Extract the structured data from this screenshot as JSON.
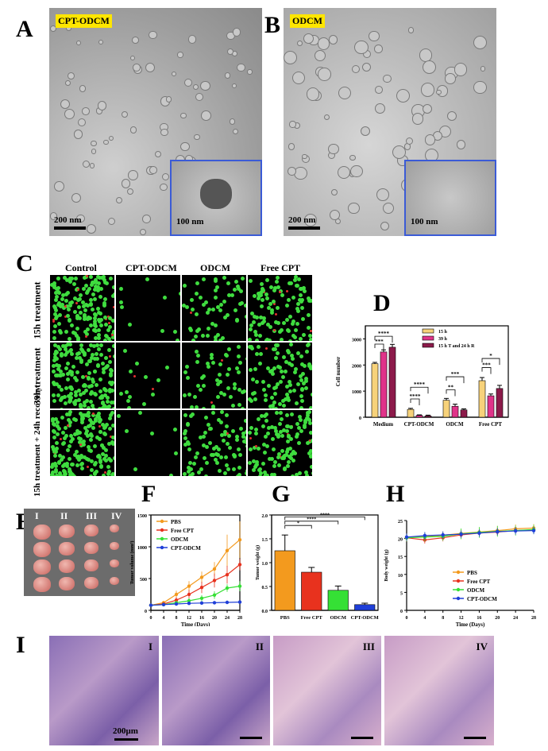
{
  "panels": {
    "A": {
      "letter": "A",
      "tag": "CPT-ODCM",
      "scale": "200 nm",
      "inset_scale": "100 nm"
    },
    "B": {
      "letter": "B",
      "tag": "ODCM",
      "scale": "200 nm",
      "inset_scale": "100 nm"
    },
    "C": {
      "letter": "C",
      "columns": [
        "Control",
        "CPT-ODCM",
        "ODCM",
        "Free CPT"
      ],
      "rows": [
        "15h treatment",
        "39h treatment",
        "15h treatment + 24h recovery"
      ]
    },
    "D": {
      "letter": "D"
    },
    "E": {
      "letter": "E",
      "groups": [
        "I",
        "II",
        "III",
        "IV"
      ]
    },
    "F": {
      "letter": "F"
    },
    "G": {
      "letter": "G"
    },
    "H": {
      "letter": "H"
    },
    "I": {
      "letter": "I",
      "images": [
        "I",
        "II",
        "III",
        "IV"
      ],
      "scale": "200μm"
    }
  },
  "colors": {
    "PBS": "#f39a1e",
    "Free CPT": "#e8321e",
    "ODCM": "#35e035",
    "CPT-ODCM": "#1f3fd8",
    "15 h": "#f7d27a",
    "39 h": "#e0338a",
    "15 h T and 24 h R": "#8c1a4a"
  },
  "chart_data": [
    {
      "id": "D",
      "type": "bar",
      "ylabel": "Cell number",
      "ylim": [
        0,
        3500
      ],
      "yticks": [
        0,
        1000,
        2000,
        3000
      ],
      "categories": [
        "Medium",
        "CPT-ODCM",
        "ODCM",
        "Free CPT"
      ],
      "legend": "top-right",
      "series": [
        {
          "name": "15 h",
          "values": [
            2050,
            300,
            650,
            1400
          ],
          "errors": [
            50,
            40,
            70,
            120
          ]
        },
        {
          "name": "39 h",
          "values": [
            2500,
            70,
            420,
            820
          ],
          "errors": [
            80,
            20,
            80,
            70
          ]
        },
        {
          "name": "15 h T and 24 h R",
          "values": [
            2680,
            50,
            280,
            1100
          ],
          "errors": [
            110,
            30,
            40,
            120
          ]
        }
      ],
      "annotations": [
        "****",
        "***",
        "****",
        "****",
        "***",
        "**",
        "*",
        "***"
      ]
    },
    {
      "id": "F",
      "type": "line",
      "xlabel": "Time (Days)",
      "ylabel": "Tumor volume (mm³)",
      "xlim": [
        0,
        28
      ],
      "ylim": [
        0,
        1500
      ],
      "xticks": [
        0,
        4,
        8,
        12,
        16,
        20,
        24,
        28
      ],
      "yticks": [
        0,
        500,
        1000,
        1500
      ],
      "legend": "top-left",
      "x": [
        0,
        4,
        8,
        12,
        16,
        20,
        24,
        28
      ],
      "series": [
        {
          "name": "PBS",
          "values": [
            80,
            120,
            250,
            380,
            520,
            650,
            940,
            1110
          ],
          "errors": [
            20,
            30,
            60,
            80,
            90,
            110,
            250,
            290
          ]
        },
        {
          "name": "Free CPT",
          "values": [
            80,
            100,
            160,
            250,
            360,
            470,
            560,
            720
          ],
          "errors": [
            20,
            25,
            50,
            70,
            90,
            110,
            140,
            90
          ]
        },
        {
          "name": "ODCM",
          "values": [
            80,
            90,
            120,
            150,
            190,
            240,
            350,
            380
          ],
          "errors": [
            15,
            20,
            30,
            40,
            50,
            60,
            60,
            80
          ]
        },
        {
          "name": "CPT-ODCM",
          "values": [
            80,
            90,
            100,
            110,
            115,
            120,
            125,
            130
          ],
          "errors": [
            10,
            10,
            10,
            10,
            10,
            10,
            10,
            10
          ]
        }
      ]
    },
    {
      "id": "G",
      "type": "bar",
      "ylabel": "Tumor weight (g)",
      "ylim": [
        0,
        2.0
      ],
      "yticks": [
        0.0,
        0.5,
        1.0,
        1.5,
        2.0
      ],
      "categories": [
        "PBS",
        "Free CPT",
        "ODCM",
        "CPT-ODCM"
      ],
      "values": [
        1.25,
        0.8,
        0.42,
        0.12
      ],
      "errors": [
        0.33,
        0.1,
        0.09,
        0.03
      ],
      "annotations": [
        "*",
        "****",
        "****"
      ]
    },
    {
      "id": "H",
      "type": "line",
      "xlabel": "Time (Days)",
      "ylabel": "Body weight (g)",
      "xlim": [
        0,
        28
      ],
      "ylim": [
        0,
        25
      ],
      "xticks": [
        0,
        4,
        8,
        12,
        16,
        20,
        24,
        28
      ],
      "yticks": [
        0,
        5,
        10,
        15,
        20,
        25
      ],
      "legend": "bottom-right",
      "x": [
        0,
        4,
        8,
        12,
        16,
        20,
        24,
        28
      ],
      "series": [
        {
          "name": "PBS",
          "values": [
            20.3,
            20.6,
            20.9,
            21.4,
            21.8,
            22.2,
            22.7,
            22.9
          ],
          "errors": [
            1,
            1,
            1,
            1.2,
            1.2,
            1.3,
            1.2,
            1.1
          ]
        },
        {
          "name": "Free CPT",
          "values": [
            20.2,
            19.6,
            20.2,
            21.0,
            21.5,
            21.8,
            22.2,
            22.4
          ],
          "errors": [
            1,
            1,
            1,
            1,
            1,
            1,
            1,
            1
          ]
        },
        {
          "name": "ODCM",
          "values": [
            20.2,
            20.4,
            20.6,
            21.3,
            21.7,
            22.0,
            22.2,
            22.5
          ],
          "errors": [
            1,
            1.2,
            1.2,
            1.5,
            1.5,
            1.5,
            1.4,
            1.3
          ]
        },
        {
          "name": "CPT-ODCM",
          "values": [
            20.4,
            20.8,
            21.0,
            21.2,
            21.5,
            21.9,
            22.1,
            22.2
          ],
          "errors": [
            1,
            1,
            1,
            1,
            1,
            1,
            1,
            1
          ]
        }
      ]
    }
  ]
}
